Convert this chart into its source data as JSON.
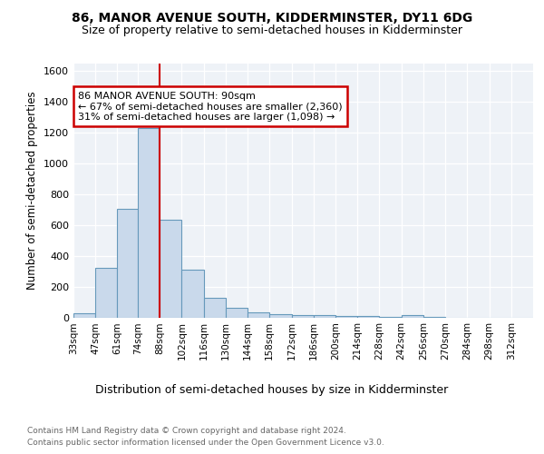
{
  "title": "86, MANOR AVENUE SOUTH, KIDDERMINSTER, DY11 6DG",
  "subtitle": "Size of property relative to semi-detached houses in Kidderminster",
  "xlabel": "Distribution of semi-detached houses by size in Kidderminster",
  "ylabel": "Number of semi-detached properties",
  "footnote1": "Contains HM Land Registry data © Crown copyright and database right 2024.",
  "footnote2": "Contains public sector information licensed under the Open Government Licence v3.0.",
  "bin_labels": [
    "33sqm",
    "47sqm",
    "61sqm",
    "74sqm",
    "88sqm",
    "102sqm",
    "116sqm",
    "130sqm",
    "144sqm",
    "158sqm",
    "172sqm",
    "186sqm",
    "200sqm",
    "214sqm",
    "228sqm",
    "242sqm",
    "256sqm",
    "270sqm",
    "284sqm",
    "298sqm",
    "312sqm"
  ],
  "bin_edges": [
    33,
    47,
    61,
    74,
    88,
    102,
    116,
    130,
    144,
    158,
    172,
    186,
    200,
    214,
    228,
    242,
    256,
    270,
    284,
    298,
    312,
    326
  ],
  "bar_heights": [
    30,
    325,
    710,
    1230,
    635,
    315,
    130,
    65,
    35,
    25,
    20,
    15,
    10,
    10,
    8,
    15,
    5,
    0,
    0,
    0,
    0
  ],
  "bar_color": "#c9d9eb",
  "bar_edge_color": "#6699bb",
  "property_line_x": 88,
  "annotation_text1": "86 MANOR AVENUE SOUTH: 90sqm",
  "annotation_text2": "← 67% of semi-detached houses are smaller (2,360)",
  "annotation_text3": "31% of semi-detached houses are larger (1,098) →",
  "annotation_box_color": "#ffffff",
  "annotation_border_color": "#cc0000",
  "vline_color": "#cc0000",
  "ylim": [
    0,
    1650
  ],
  "yticks": [
    0,
    200,
    400,
    600,
    800,
    1000,
    1200,
    1400,
    1600
  ],
  "background_color": "#eef2f7",
  "grid_color": "#ffffff"
}
